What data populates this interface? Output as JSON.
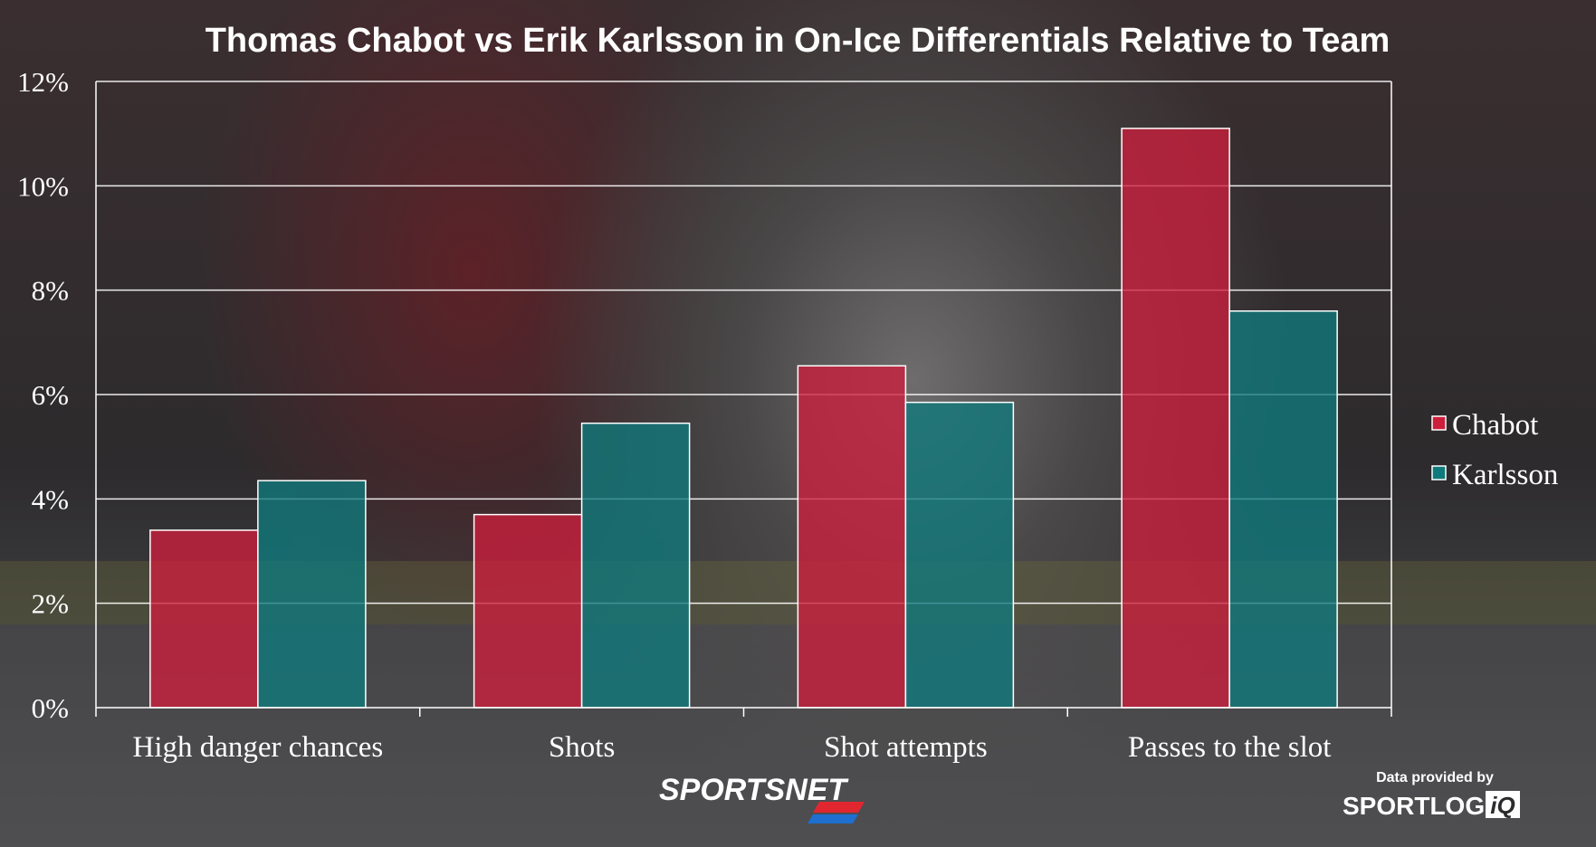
{
  "chart_data": {
    "type": "bar",
    "title": "Thomas Chabot vs Erik Karlsson in On-Ice Differentials Relative to Team",
    "categories": [
      "High danger chances",
      "Shots",
      "Shot attempts",
      "Passes to the slot"
    ],
    "series": [
      {
        "name": "Chabot",
        "values": [
          3.4,
          3.7,
          6.55,
          11.1
        ],
        "color": "#cc1f3c"
      },
      {
        "name": "Karlsson",
        "values": [
          4.35,
          5.45,
          5.85,
          7.6
        ],
        "color": "#0f7a7c"
      }
    ],
    "yticks": [
      "0%",
      "2%",
      "4%",
      "6%",
      "8%",
      "10%",
      "12%"
    ],
    "ylim": [
      0,
      12
    ],
    "grid": true,
    "legend_position": "right"
  },
  "branding": {
    "network": "SPORTSNET",
    "credit_label": "Data provided by",
    "provider_main": "SPORTLOG",
    "provider_suffix": "iQ"
  }
}
